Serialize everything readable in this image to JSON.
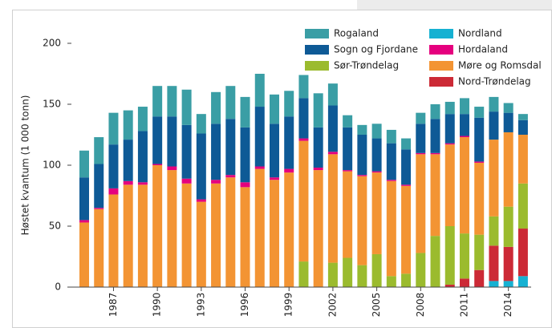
{
  "chart_data": {
    "type": "stacked-bar",
    "ylabel": "Høstet kvantum (1 000 tonn)",
    "categories": [
      null,
      null,
      "1987",
      null,
      null,
      "1990",
      null,
      null,
      "1993",
      null,
      null,
      "1996",
      null,
      null,
      "1999",
      null,
      null,
      "2002",
      null,
      null,
      "2005",
      null,
      null,
      "2008",
      null,
      null,
      "2011",
      null,
      null,
      "2014",
      null
    ],
    "series": [
      {
        "name": "Nordland",
        "color": "#16b1d2",
        "values": [
          0,
          0,
          0,
          0,
          0,
          0,
          0,
          0,
          0,
          0,
          0,
          0,
          0,
          0,
          0,
          0,
          0,
          0,
          0,
          0,
          0,
          0,
          0,
          0,
          0,
          0,
          0,
          0,
          5,
          5,
          9
        ]
      },
      {
        "name": "Nord-Trøndelag",
        "color": "#cc2a36",
        "values": [
          0,
          0,
          0,
          0,
          0,
          0,
          0,
          0,
          0,
          0,
          0,
          0,
          0,
          0,
          0,
          0,
          0,
          0,
          0,
          0,
          0,
          0,
          0,
          0,
          0,
          2,
          7,
          14,
          29,
          28,
          39
        ]
      },
      {
        "name": "Sør-Trøndelag",
        "color": "#9bbb2e",
        "values": [
          0,
          0,
          0,
          0,
          0,
          0,
          0,
          0,
          0,
          0,
          0,
          0,
          0,
          0,
          0,
          21,
          0,
          20,
          24,
          18,
          27,
          9,
          11,
          28,
          42,
          48,
          37,
          29,
          24,
          33,
          37
        ]
      },
      {
        "name": "Møre og Romsdal",
        "color": "#f39433",
        "values": [
          53,
          64,
          76,
          84,
          84,
          100,
          96,
          85,
          70,
          85,
          90,
          82,
          97,
          88,
          94,
          99,
          96,
          89,
          71,
          73,
          67,
          78,
          72,
          81,
          67,
          67,
          79,
          59,
          63,
          61,
          40
        ]
      },
      {
        "name": "Hordaland",
        "color": "#e5007e",
        "values": [
          2,
          1,
          5,
          3,
          2,
          1,
          3,
          4,
          2,
          3,
          2,
          4,
          2,
          2,
          3,
          2,
          2,
          2,
          1,
          1,
          1,
          1,
          1,
          1,
          1,
          1,
          1,
          1,
          0,
          0,
          0
        ]
      },
      {
        "name": "Sogn og Fjordane",
        "color": "#0e5a96",
        "values": [
          35,
          36,
          36,
          34,
          42,
          39,
          41,
          44,
          54,
          46,
          46,
          45,
          49,
          44,
          43,
          33,
          33,
          38,
          35,
          33,
          27,
          30,
          29,
          24,
          28,
          24,
          18,
          36,
          23,
          16,
          12
        ]
      },
      {
        "name": "Rogaland",
        "color": "#3a9ea5",
        "values": [
          22,
          22,
          26,
          24,
          20,
          25,
          25,
          29,
          16,
          26,
          27,
          25,
          27,
          24,
          21,
          19,
          28,
          18,
          10,
          8,
          12,
          11,
          9,
          9,
          12,
          10,
          13,
          9,
          12,
          8,
          5
        ]
      }
    ],
    "ylim": [
      0,
      200
    ],
    "yticks": [
      0,
      50,
      100,
      150,
      200
    ],
    "grid": false
  }
}
